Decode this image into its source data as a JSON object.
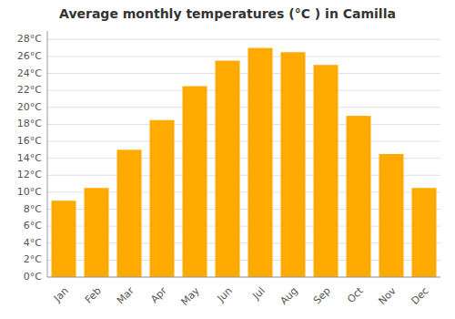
{
  "chart_data": {
    "type": "bar",
    "title": "Average monthly temperatures (°C ) in Camilla",
    "categories": [
      "Jan",
      "Feb",
      "Mar",
      "Apr",
      "May",
      "Jun",
      "Jul",
      "Aug",
      "Sep",
      "Oct",
      "Nov",
      "Dec"
    ],
    "values": [
      9,
      10.5,
      15,
      18.5,
      22.5,
      25.5,
      27,
      26.5,
      25,
      19,
      14.5,
      10.5
    ],
    "color": "#FFAA00",
    "ylim": [
      0,
      29
    ],
    "yticks": [
      {
        "value": 0,
        "label": "0°C"
      },
      {
        "value": 2,
        "label": "2°C"
      },
      {
        "value": 4,
        "label": "4°C"
      },
      {
        "value": 6,
        "label": "6°C"
      },
      {
        "value": 8,
        "label": "8°C"
      },
      {
        "value": 10,
        "label": "10°C"
      },
      {
        "value": 12,
        "label": "12°C"
      },
      {
        "value": 14,
        "label": "14°C"
      },
      {
        "value": 16,
        "label": "16°C"
      },
      {
        "value": 18,
        "label": "18°C"
      },
      {
        "value": 20,
        "label": "20°C"
      },
      {
        "value": 22,
        "label": "22°C"
      },
      {
        "value": 24,
        "label": "24°C"
      },
      {
        "value": 26,
        "label": "26°C"
      },
      {
        "value": 28,
        "label": "28°C"
      }
    ],
    "grid": true
  }
}
